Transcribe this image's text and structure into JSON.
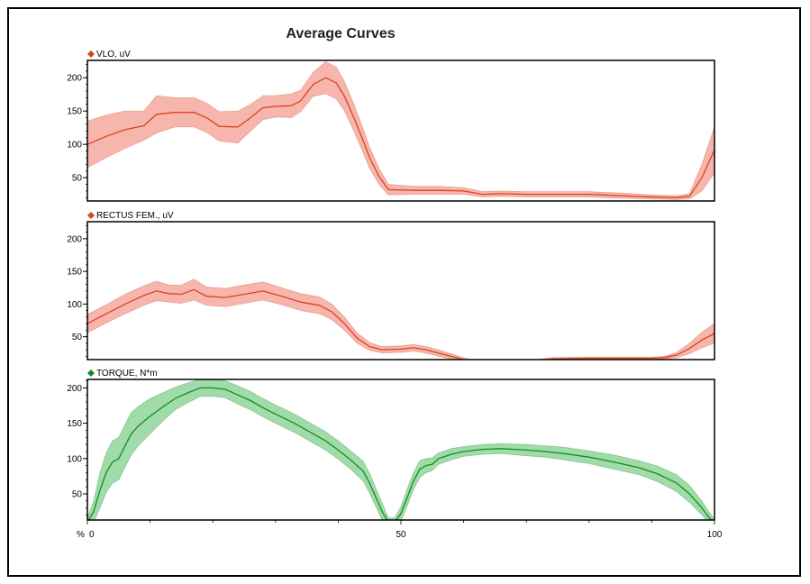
{
  "chart_data": {
    "type": "line",
    "title": "Average Curves",
    "xlabel": "%",
    "xlim": [
      0,
      100
    ],
    "x_ticks": [
      "0",
      "50",
      "100"
    ],
    "x_minor_step": 10,
    "grid": false,
    "panels": [
      {
        "name": "VLO, uV",
        "color": "#d9441c",
        "band_color": "#f4a9a0",
        "ylim": [
          15,
          226
        ],
        "y_ticks": [
          "50",
          "100",
          "150",
          "200"
        ],
        "points": [
          [
            0,
            100,
            35
          ],
          [
            3,
            112,
            32
          ],
          [
            6,
            122,
            28
          ],
          [
            9,
            128,
            22
          ],
          [
            11,
            145,
            28
          ],
          [
            14,
            148,
            22
          ],
          [
            17,
            148,
            22
          ],
          [
            19,
            140,
            22
          ],
          [
            21,
            127,
            22
          ],
          [
            24,
            126,
            24
          ],
          [
            26,
            140,
            20
          ],
          [
            28,
            155,
            18
          ],
          [
            30,
            157,
            16
          ],
          [
            32.5,
            158,
            18
          ],
          [
            34,
            165,
            16
          ],
          [
            36,
            190,
            18
          ],
          [
            38,
            200,
            24
          ],
          [
            39.7,
            192,
            24
          ],
          [
            41,
            172,
            22
          ],
          [
            42.5,
            140,
            20
          ],
          [
            44,
            105,
            18
          ],
          [
            45,
            80,
            16
          ],
          [
            46.5,
            52,
            12
          ],
          [
            48,
            32,
            8
          ],
          [
            52,
            31,
            6
          ],
          [
            56,
            31,
            6
          ],
          [
            60,
            30,
            5
          ],
          [
            63,
            25,
            4
          ],
          [
            66,
            26,
            4
          ],
          [
            70,
            25,
            4
          ],
          [
            75,
            25,
            4
          ],
          [
            80,
            25,
            4
          ],
          [
            85,
            23,
            4
          ],
          [
            90,
            21,
            3
          ],
          [
            94,
            20,
            3
          ],
          [
            96,
            22,
            4
          ],
          [
            98,
            50,
            20
          ],
          [
            100,
            92,
            35
          ]
        ]
      },
      {
        "name": "RECTUS FEM., uV",
        "color": "#d9441c",
        "band_color": "#f4a9a0",
        "ylim": [
          15,
          226
        ],
        "y_ticks": [
          "50",
          "100",
          "150",
          "200"
        ],
        "points": [
          [
            0,
            70,
            14
          ],
          [
            3,
            85,
            14
          ],
          [
            6,
            100,
            15
          ],
          [
            9,
            113,
            15
          ],
          [
            11,
            120,
            15
          ],
          [
            13,
            116,
            13
          ],
          [
            15,
            115,
            14
          ],
          [
            17,
            122,
            16
          ],
          [
            19,
            112,
            14
          ],
          [
            22,
            110,
            14
          ],
          [
            25,
            115,
            14
          ],
          [
            28,
            120,
            14
          ],
          [
            31,
            112,
            13
          ],
          [
            34,
            103,
            13
          ],
          [
            37,
            98,
            13
          ],
          [
            39,
            88,
            12
          ],
          [
            41,
            70,
            10
          ],
          [
            43,
            48,
            8
          ],
          [
            45,
            35,
            6
          ],
          [
            47,
            30,
            5
          ],
          [
            50,
            31,
            5
          ],
          [
            52,
            33,
            5
          ],
          [
            54,
            30,
            5
          ],
          [
            56,
            25,
            5
          ],
          [
            58,
            20,
            4
          ],
          [
            60,
            15,
            3
          ],
          [
            62,
            10,
            3
          ],
          [
            70,
            10,
            3
          ],
          [
            74,
            16,
            2
          ],
          [
            80,
            17,
            2
          ],
          [
            85,
            17,
            2
          ],
          [
            90,
            17,
            2
          ],
          [
            92,
            18,
            2
          ],
          [
            94,
            22,
            4
          ],
          [
            96,
            32,
            8
          ],
          [
            98,
            45,
            12
          ],
          [
            100,
            55,
            15
          ]
        ]
      },
      {
        "name": "TORQUE, N*m",
        "color": "#1a8a22",
        "band_color": "#8fd69a",
        "ylim": [
          13,
          212
        ],
        "y_ticks": [
          "50",
          "100",
          "150",
          "200"
        ],
        "points": [
          [
            0,
            10,
            6
          ],
          [
            1,
            25,
            15
          ],
          [
            2,
            55,
            25
          ],
          [
            3,
            80,
            28
          ],
          [
            4,
            95,
            30
          ],
          [
            5,
            100,
            30
          ],
          [
            6,
            118,
            30
          ],
          [
            7,
            135,
            30
          ],
          [
            8,
            145,
            28
          ],
          [
            10,
            160,
            25
          ],
          [
            12,
            173,
            20
          ],
          [
            14,
            185,
            16
          ],
          [
            16,
            193,
            14
          ],
          [
            18,
            200,
            12
          ],
          [
            20,
            200,
            12
          ],
          [
            22,
            198,
            12
          ],
          [
            24,
            190,
            13
          ],
          [
            26,
            182,
            13
          ],
          [
            28,
            172,
            13
          ],
          [
            30,
            163,
            13
          ],
          [
            33,
            150,
            13
          ],
          [
            36,
            135,
            13
          ],
          [
            38,
            125,
            13
          ],
          [
            40,
            112,
            13
          ],
          [
            42,
            98,
            13
          ],
          [
            44,
            82,
            14
          ],
          [
            45,
            65,
            14
          ],
          [
            46,
            45,
            13
          ],
          [
            47,
            25,
            12
          ],
          [
            48,
            10,
            6
          ],
          [
            49,
            10,
            6
          ],
          [
            50,
            22,
            10
          ],
          [
            51,
            45,
            12
          ],
          [
            52,
            68,
            12
          ],
          [
            53,
            85,
            12
          ],
          [
            54,
            90,
            10
          ],
          [
            55,
            92,
            9
          ],
          [
            56,
            100,
            8
          ],
          [
            58,
            106,
            8
          ],
          [
            60,
            110,
            7
          ],
          [
            63,
            113,
            7
          ],
          [
            66,
            114,
            7
          ],
          [
            70,
            112,
            8
          ],
          [
            73,
            110,
            8
          ],
          [
            76,
            107,
            9
          ],
          [
            80,
            102,
            9
          ],
          [
            84,
            95,
            10
          ],
          [
            88,
            87,
            10
          ],
          [
            91,
            78,
            11
          ],
          [
            94,
            65,
            12
          ],
          [
            96,
            50,
            12
          ],
          [
            98,
            30,
            10
          ],
          [
            99,
            18,
            8
          ],
          [
            100,
            8,
            6
          ]
        ]
      }
    ]
  }
}
